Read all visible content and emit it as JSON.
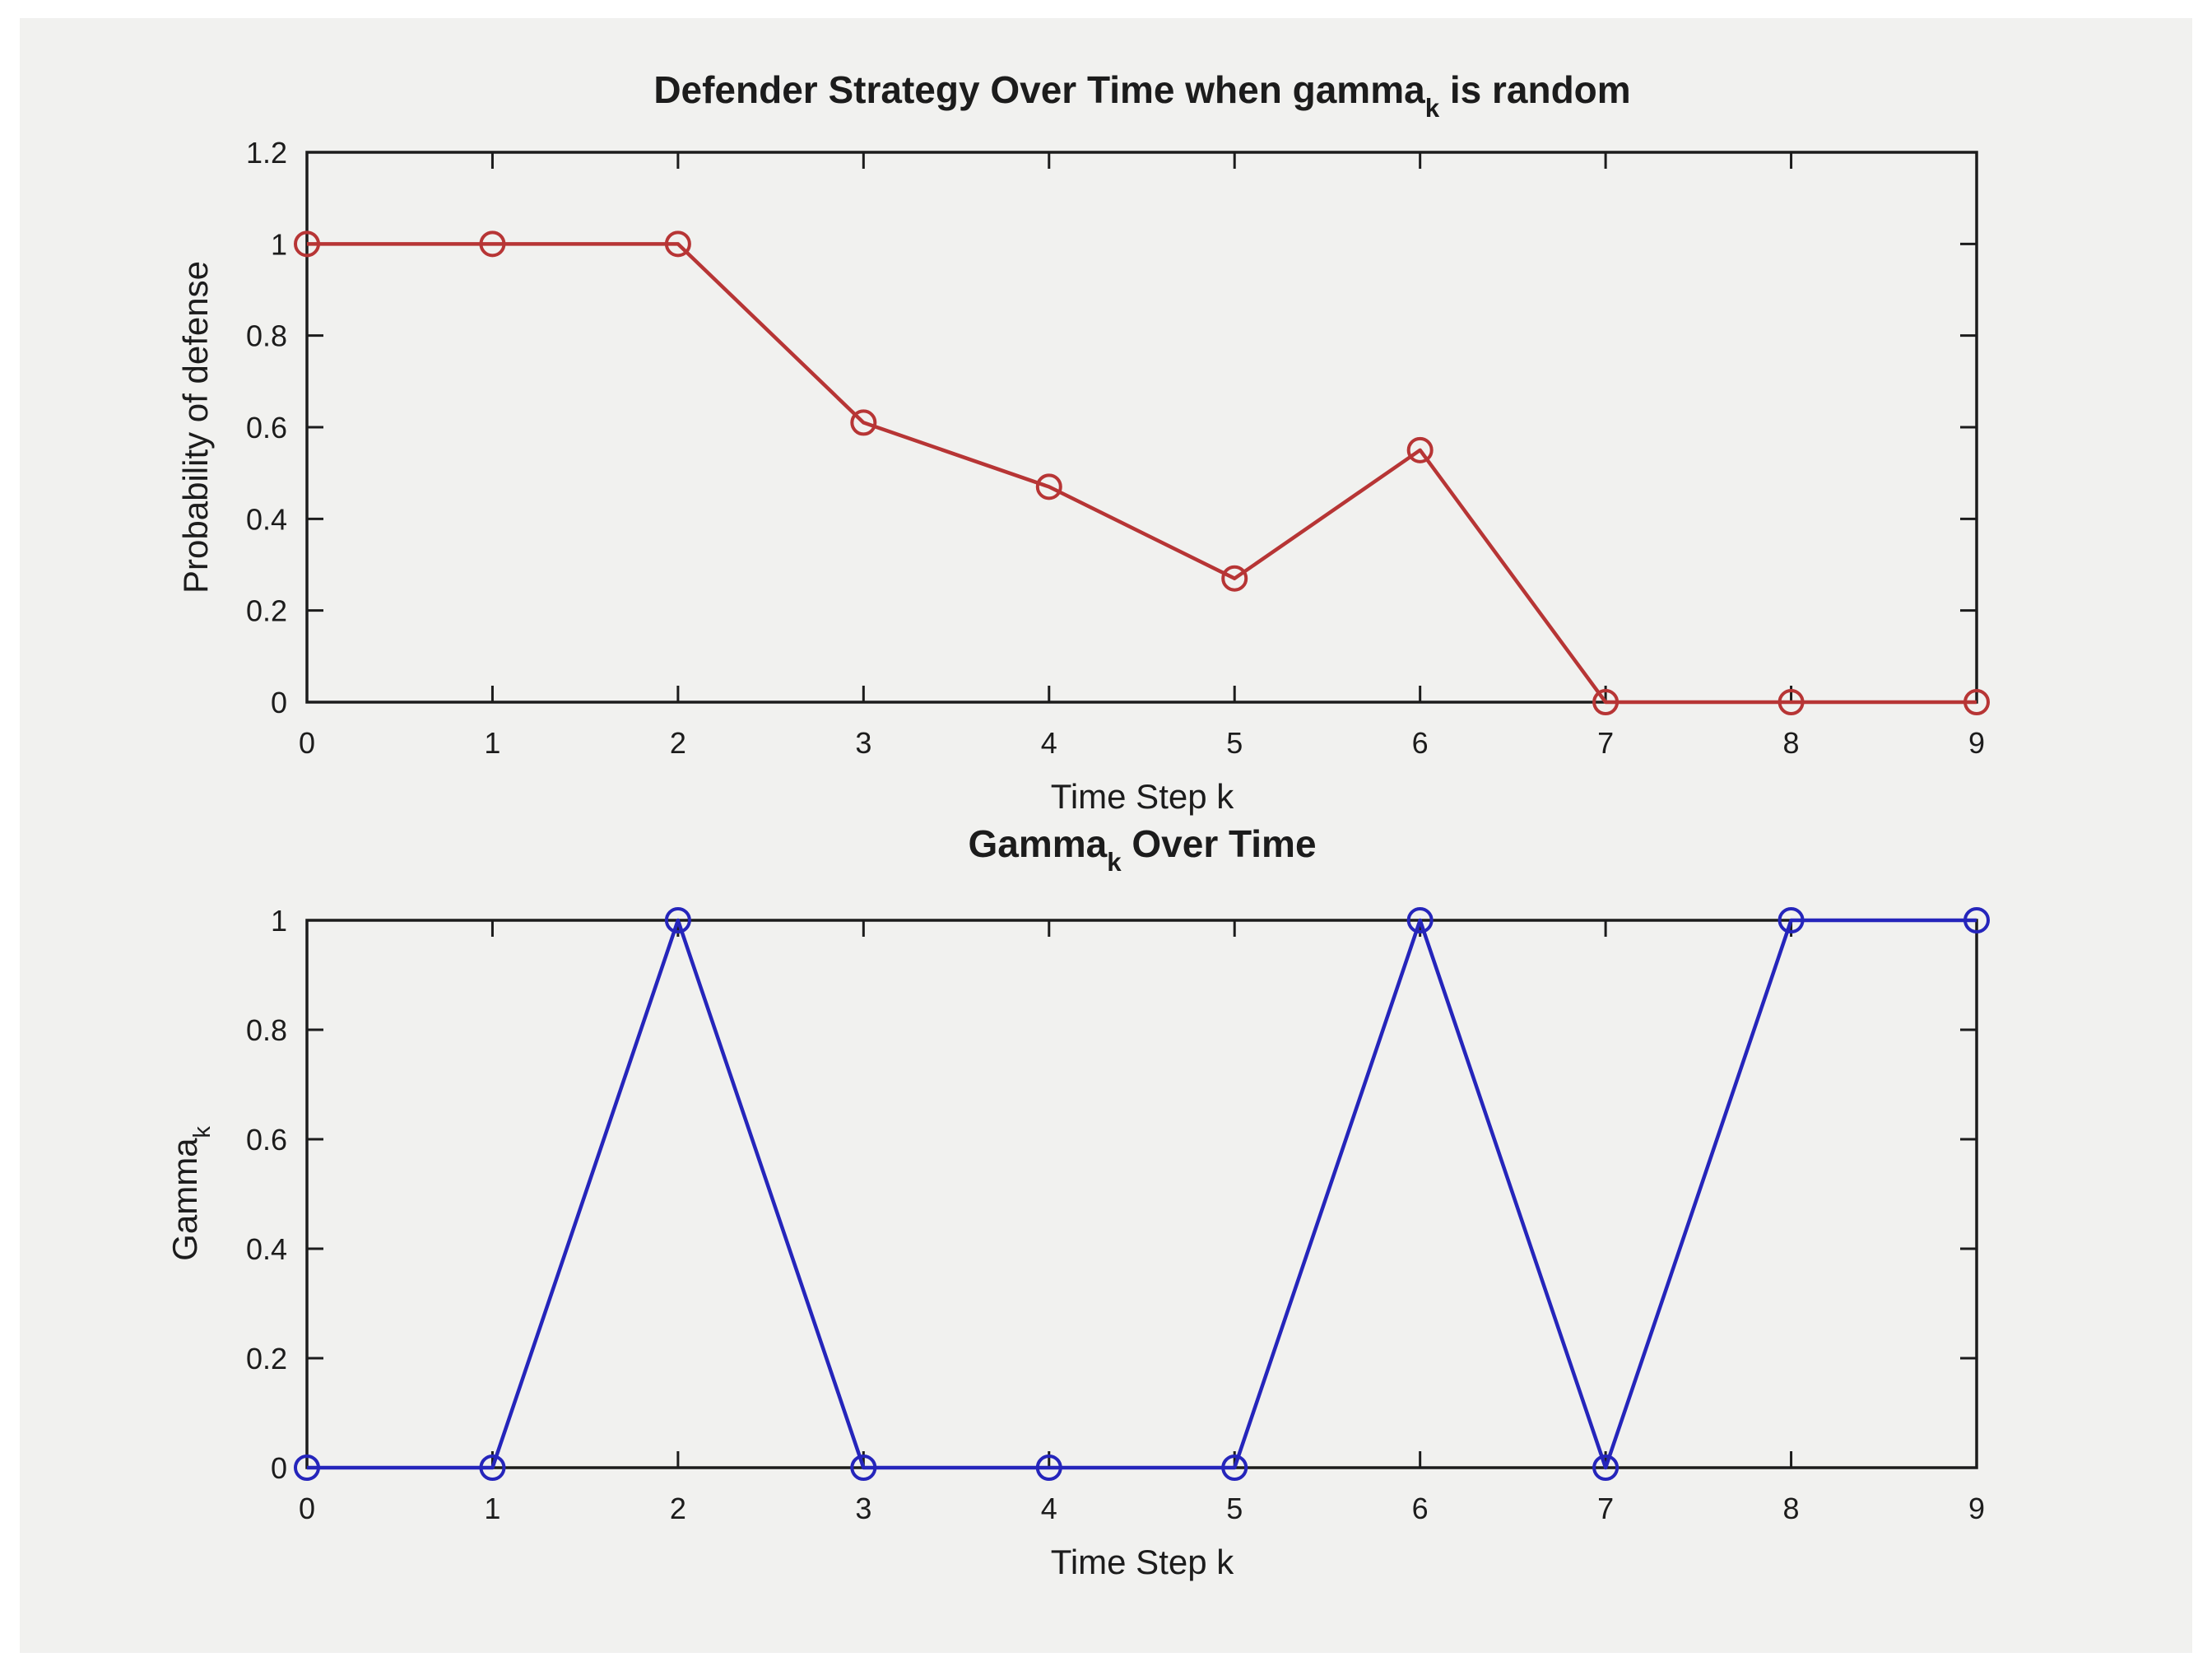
{
  "window": {
    "background": "#ffffff",
    "figure_background": "#f1f1ef",
    "axis_color": "#1c1c1c",
    "text_color": "#1c1c1c"
  },
  "chart_data": [
    {
      "id": "defender-strategy",
      "type": "line",
      "title_parts": [
        {
          "text": "Defender Strategy Over Time when gamma"
        },
        {
          "text": "k",
          "sub": true
        },
        {
          "text": " is random"
        }
      ],
      "title_plain": "Defender Strategy Over Time when gamma_k is random",
      "xlabel": "Time Step k",
      "ylabel_parts": [
        {
          "text": "Probability of defense"
        }
      ],
      "ylabel_plain": "Probability of defense",
      "x": [
        0,
        1,
        2,
        3,
        4,
        5,
        6,
        7,
        8,
        9
      ],
      "y": [
        1,
        1,
        1,
        0.61,
        0.47,
        0.27,
        0.55,
        0,
        0,
        0
      ],
      "xlim": [
        0,
        9
      ],
      "ylim": [
        0,
        1.2
      ],
      "xtick_values": [
        0,
        1,
        2,
        3,
        4,
        5,
        6,
        7,
        8,
        9
      ],
      "xtick_labels": [
        "0",
        "1",
        "2",
        "3",
        "4",
        "5",
        "6",
        "7",
        "8",
        "9"
      ],
      "ytick_values": [
        0,
        0.2,
        0.4,
        0.6,
        0.8,
        1,
        1.2
      ],
      "ytick_labels": [
        "0",
        "0.2",
        "0.4",
        "0.6",
        "0.8",
        "1",
        "1.2"
      ],
      "line_color": "#b73535",
      "marker": "open-circle",
      "grid": false,
      "legend": null
    },
    {
      "id": "gamma-over-time",
      "type": "line",
      "title_parts": [
        {
          "text": "Gamma"
        },
        {
          "text": "k",
          "sub": true
        },
        {
          "text": " Over Time"
        }
      ],
      "title_plain": "Gamma_k Over Time",
      "xlabel": "Time Step k",
      "ylabel_parts": [
        {
          "text": "Gamma"
        },
        {
          "text": "k",
          "sub": true
        }
      ],
      "ylabel_plain": "Gamma_k",
      "x": [
        0,
        1,
        2,
        3,
        4,
        5,
        6,
        7,
        8,
        9
      ],
      "y": [
        0,
        0,
        1,
        0,
        0,
        0,
        1,
        0,
        1,
        1
      ],
      "xlim": [
        0,
        9
      ],
      "ylim": [
        0,
        1
      ],
      "xtick_values": [
        0,
        1,
        2,
        3,
        4,
        5,
        6,
        7,
        8,
        9
      ],
      "xtick_labels": [
        "0",
        "1",
        "2",
        "3",
        "4",
        "5",
        "6",
        "7",
        "8",
        "9"
      ],
      "ytick_values": [
        0,
        0.2,
        0.4,
        0.6,
        0.8,
        1
      ],
      "ytick_labels": [
        "0",
        "0.2",
        "0.4",
        "0.6",
        "0.8",
        "1"
      ],
      "line_color": "#2525bb",
      "marker": "open-circle",
      "grid": false,
      "legend": null
    }
  ]
}
